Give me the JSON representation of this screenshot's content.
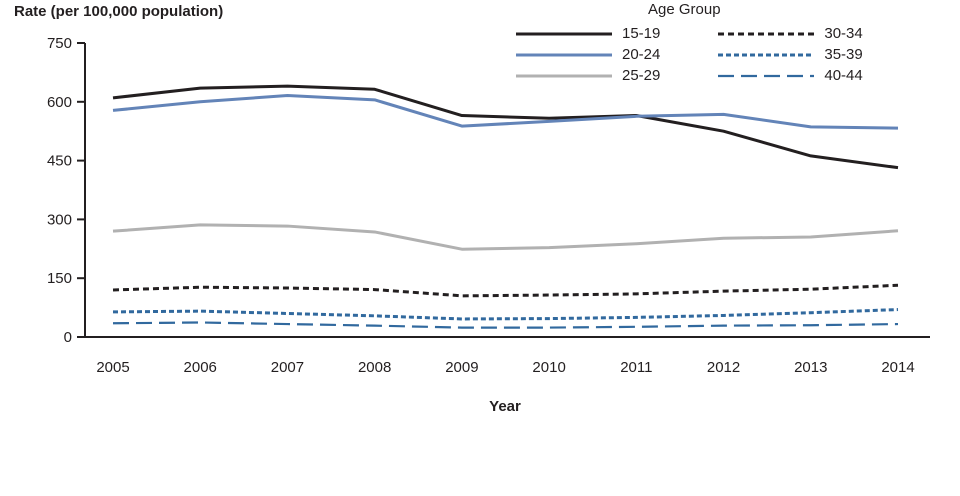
{
  "chart_data": {
    "type": "line",
    "ylabel": "Rate (per 100,000 population)",
    "xlabel": "Year",
    "legend_title": "Age Group",
    "legend_position": "top",
    "grid": false,
    "x": [
      2005,
      2006,
      2007,
      2008,
      2009,
      2010,
      2011,
      2012,
      2013,
      2014
    ],
    "ylim": [
      0,
      750
    ],
    "yticks": [
      0,
      150,
      300,
      450,
      600,
      750
    ],
    "series": [
      {
        "name": "15-19",
        "color": "#231f20",
        "dash": "",
        "width": 3,
        "values": [
          610,
          635,
          640,
          632,
          565,
          558,
          565,
          525,
          462,
          432
        ]
      },
      {
        "name": "20-24",
        "color": "#6384b8",
        "dash": "",
        "width": 3,
        "values": [
          578,
          600,
          616,
          605,
          538,
          550,
          563,
          568,
          536,
          533
        ]
      },
      {
        "name": "25-29",
        "color": "#b1b1b1",
        "dash": "",
        "width": 3,
        "values": [
          270,
          286,
          283,
          268,
          224,
          228,
          238,
          252,
          255,
          271
        ]
      },
      {
        "name": "30-34",
        "color": "#231f20",
        "dash": "6,4",
        "width": 3,
        "values": [
          120,
          127,
          125,
          121,
          105,
          107,
          110,
          117,
          122,
          132
        ]
      },
      {
        "name": "35-39",
        "color": "#31699e",
        "dash": "5,3",
        "width": 3,
        "values": [
          64,
          66,
          60,
          54,
          46,
          47,
          50,
          55,
          62,
          70
        ]
      },
      {
        "name": "40-44",
        "color": "#31699e",
        "dash": "16,7",
        "width": 2.2,
        "values": [
          35,
          37,
          33,
          29,
          24,
          24,
          26,
          29,
          30,
          33
        ]
      }
    ]
  }
}
